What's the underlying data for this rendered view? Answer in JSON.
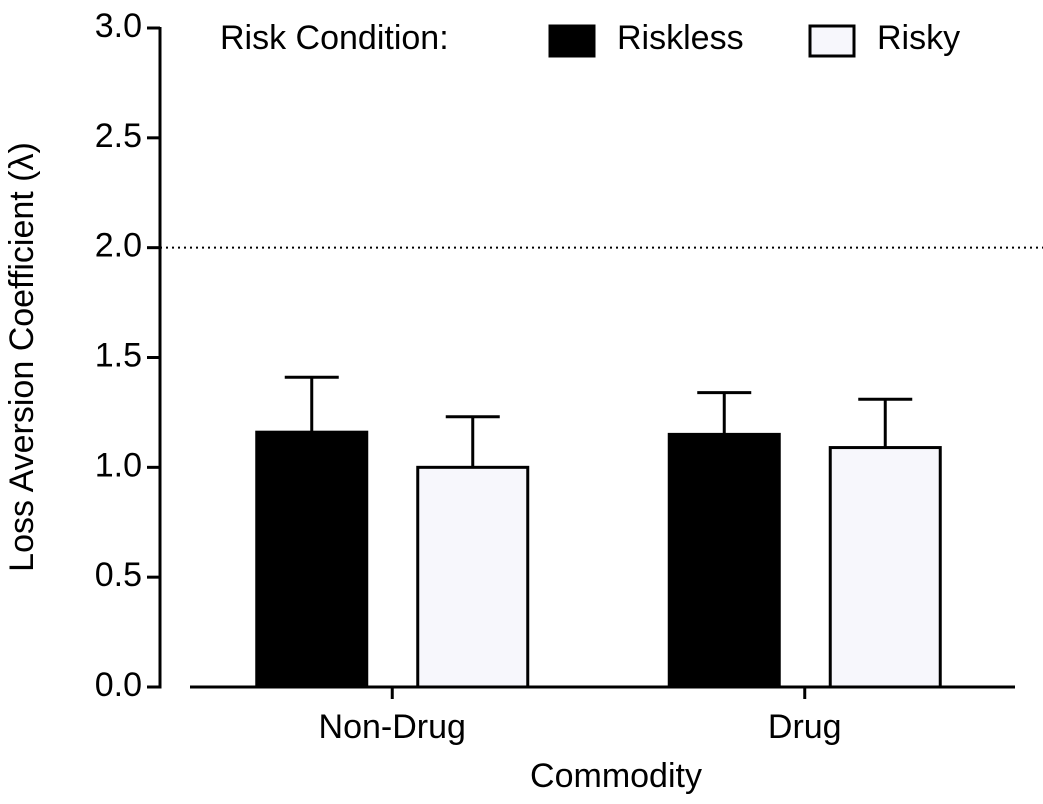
{
  "chart_data": {
    "type": "bar",
    "x_label": "Commodity",
    "y_label": "Loss Aversion Coefficient (λ)",
    "legend_title": "Risk Condition:",
    "legend_position": "top",
    "categories": [
      "Non-Drug",
      "Drug"
    ],
    "series": [
      {
        "name": "Riskless",
        "color": "#000000",
        "values": [
          1.16,
          1.15
        ],
        "errors": [
          0.25,
          0.19
        ]
      },
      {
        "name": "Risky",
        "color": "#f7f7fc",
        "values": [
          1.0,
          1.09
        ],
        "errors": [
          0.23,
          0.22
        ]
      }
    ],
    "ylim": [
      0,
      3
    ],
    "yticks": [
      {
        "value": 0,
        "label": "0.0"
      },
      0.5,
      {
        "value": 1,
        "label": "1.0"
      },
      1.5,
      {
        "value": 2,
        "label": "2.0"
      },
      2.5,
      {
        "value": 3,
        "label": "3.0"
      }
    ],
    "reference_line": 2
  }
}
